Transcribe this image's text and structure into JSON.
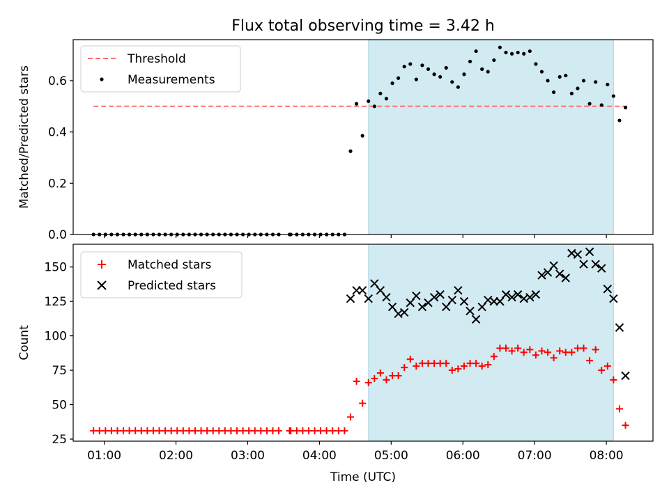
{
  "title": "Flux total observing time = 3.42 h",
  "colors": {
    "threshold": "#ff7070",
    "measurements": "#000000",
    "matched": "#ff0000",
    "predicted": "#000000",
    "span": "#add8e6"
  },
  "chart_data": [
    {
      "type": "scatter",
      "ylabel": "Matched/Predicted stars",
      "xlim": [
        "00:34",
        "08:39"
      ],
      "ylim": [
        0,
        0.76
      ],
      "yticks": [
        "0.0",
        "0.2",
        "0.4",
        "0.6"
      ],
      "ytick_values": [
        0,
        0.2,
        0.4,
        0.6
      ],
      "legend_position": "upper-left",
      "legend": [
        {
          "label": "Threshold",
          "marker": "dashed-line"
        },
        {
          "label": "Measurements",
          "marker": "dot"
        }
      ],
      "highlight_span": {
        "from": "04:41",
        "to": "08:06"
      },
      "threshold": {
        "value": 0.5,
        "from": "00:51",
        "to": "08:20"
      },
      "series": [
        {
          "name": "Measurements",
          "points": [
            [
              "00:51",
              0
            ],
            [
              "00:56",
              0
            ],
            [
              "01:01",
              0
            ],
            [
              "01:06",
              0
            ],
            [
              "01:11",
              0
            ],
            [
              "01:16",
              0
            ],
            [
              "01:21",
              0
            ],
            [
              "01:26",
              0
            ],
            [
              "01:31",
              0
            ],
            [
              "01:36",
              0
            ],
            [
              "01:41",
              0
            ],
            [
              "01:46",
              0
            ],
            [
              "01:51",
              0
            ],
            [
              "01:56",
              0
            ],
            [
              "02:01",
              0
            ],
            [
              "02:06",
              0
            ],
            [
              "02:11",
              0
            ],
            [
              "02:16",
              0
            ],
            [
              "02:21",
              0
            ],
            [
              "02:26",
              0
            ],
            [
              "02:31",
              0
            ],
            [
              "02:36",
              0
            ],
            [
              "02:41",
              0
            ],
            [
              "02:46",
              0
            ],
            [
              "02:51",
              0
            ],
            [
              "02:56",
              0
            ],
            [
              "03:01",
              0
            ],
            [
              "03:06",
              0
            ],
            [
              "03:11",
              0
            ],
            [
              "03:16",
              0
            ],
            [
              "03:21",
              0
            ],
            [
              "03:26",
              0
            ],
            [
              "03:35",
              0
            ],
            [
              "03:36",
              0
            ],
            [
              "03:41",
              0
            ],
            [
              "03:46",
              0
            ],
            [
              "03:51",
              0
            ],
            [
              "03:56",
              0
            ],
            [
              "04:01",
              0
            ],
            [
              "04:06",
              0
            ],
            [
              "04:11",
              0
            ],
            [
              "04:16",
              0
            ],
            [
              "04:21",
              0
            ],
            [
              "04:26",
              0.325
            ],
            [
              "04:31",
              0.51
            ],
            [
              "04:36",
              0.385
            ],
            [
              "04:41",
              0.52
            ],
            [
              "04:46",
              0.5
            ],
            [
              "04:51",
              0.55
            ],
            [
              "04:56",
              0.53
            ],
            [
              "05:01",
              0.59
            ],
            [
              "05:06",
              0.61
            ],
            [
              "05:11",
              0.655
            ],
            [
              "05:16",
              0.665
            ],
            [
              "05:21",
              0.605
            ],
            [
              "05:26",
              0.66
            ],
            [
              "05:31",
              0.645
            ],
            [
              "05:36",
              0.625
            ],
            [
              "05:41",
              0.615
            ],
            [
              "05:46",
              0.65
            ],
            [
              "05:51",
              0.595
            ],
            [
              "05:56",
              0.575
            ],
            [
              "06:01",
              0.625
            ],
            [
              "06:06",
              0.675
            ],
            [
              "06:11",
              0.715
            ],
            [
              "06:16",
              0.645
            ],
            [
              "06:21",
              0.635
            ],
            [
              "06:26",
              0.68
            ],
            [
              "06:31",
              0.73
            ],
            [
              "06:36",
              0.71
            ],
            [
              "06:41",
              0.705
            ],
            [
              "06:46",
              0.71
            ],
            [
              "06:51",
              0.705
            ],
            [
              "06:56",
              0.715
            ],
            [
              "07:01",
              0.665
            ],
            [
              "07:06",
              0.635
            ],
            [
              "07:11",
              0.6
            ],
            [
              "07:16",
              0.555
            ],
            [
              "07:21",
              0.615
            ],
            [
              "07:26",
              0.62
            ],
            [
              "07:31",
              0.55
            ],
            [
              "07:36",
              0.57
            ],
            [
              "07:41",
              0.6
            ],
            [
              "07:46",
              0.51
            ],
            [
              "07:51",
              0.595
            ],
            [
              "07:56",
              0.505
            ],
            [
              "08:01",
              0.585
            ],
            [
              "08:06",
              0.54
            ],
            [
              "08:11",
              0.445
            ],
            [
              "08:16",
              0.495
            ]
          ]
        }
      ]
    },
    {
      "type": "scatter",
      "xlabel": "Time (UTC)",
      "ylabel": "Count",
      "xlim": [
        "00:34",
        "08:39"
      ],
      "ylim": [
        23.5,
        166.5
      ],
      "xticks": [
        "01:00",
        "02:00",
        "03:00",
        "04:00",
        "05:00",
        "06:00",
        "07:00",
        "08:00"
      ],
      "yticks": [
        "25",
        "50",
        "75",
        "100",
        "125",
        "150"
      ],
      "ytick_values": [
        25,
        50,
        75,
        100,
        125,
        150
      ],
      "legend_position": "upper-left",
      "legend": [
        {
          "label": "Matched stars",
          "marker": "plus"
        },
        {
          "label": "Predicted stars",
          "marker": "x"
        }
      ],
      "highlight_span": {
        "from": "04:41",
        "to": "08:06"
      },
      "series": [
        {
          "name": "Matched stars",
          "points": [
            [
              "00:51",
              31
            ],
            [
              "00:56",
              31
            ],
            [
              "01:01",
              31
            ],
            [
              "01:06",
              31
            ],
            [
              "01:11",
              31
            ],
            [
              "01:16",
              31
            ],
            [
              "01:21",
              31
            ],
            [
              "01:26",
              31
            ],
            [
              "01:31",
              31
            ],
            [
              "01:36",
              31
            ],
            [
              "01:41",
              31
            ],
            [
              "01:46",
              31
            ],
            [
              "01:51",
              31
            ],
            [
              "01:56",
              31
            ],
            [
              "02:01",
              31
            ],
            [
              "02:06",
              31
            ],
            [
              "02:11",
              31
            ],
            [
              "02:16",
              31
            ],
            [
              "02:21",
              31
            ],
            [
              "02:26",
              31
            ],
            [
              "02:31",
              31
            ],
            [
              "02:36",
              31
            ],
            [
              "02:41",
              31
            ],
            [
              "02:46",
              31
            ],
            [
              "02:51",
              31
            ],
            [
              "02:56",
              31
            ],
            [
              "03:01",
              31
            ],
            [
              "03:06",
              31
            ],
            [
              "03:11",
              31
            ],
            [
              "03:16",
              31
            ],
            [
              "03:21",
              31
            ],
            [
              "03:26",
              31
            ],
            [
              "03:35",
              31
            ],
            [
              "03:36",
              31
            ],
            [
              "03:41",
              31
            ],
            [
              "03:46",
              31
            ],
            [
              "03:51",
              31
            ],
            [
              "03:56",
              31
            ],
            [
              "04:01",
              31
            ],
            [
              "04:06",
              31
            ],
            [
              "04:11",
              31
            ],
            [
              "04:16",
              31
            ],
            [
              "04:21",
              31
            ],
            [
              "04:26",
              41
            ],
            [
              "04:31",
              67
            ],
            [
              "04:36",
              51
            ],
            [
              "04:41",
              66
            ],
            [
              "04:46",
              69
            ],
            [
              "04:51",
              73
            ],
            [
              "04:56",
              68
            ],
            [
              "05:01",
              71
            ],
            [
              "05:06",
              71
            ],
            [
              "05:11",
              77
            ],
            [
              "05:16",
              83
            ],
            [
              "05:21",
              78
            ],
            [
              "05:26",
              80
            ],
            [
              "05:31",
              80
            ],
            [
              "05:36",
              80
            ],
            [
              "05:41",
              80
            ],
            [
              "05:46",
              80
            ],
            [
              "05:51",
              75
            ],
            [
              "05:56",
              76
            ],
            [
              "06:01",
              78
            ],
            [
              "06:06",
              80
            ],
            [
              "06:11",
              80
            ],
            [
              "06:16",
              78
            ],
            [
              "06:21",
              79
            ],
            [
              "06:26",
              85
            ],
            [
              "06:31",
              91
            ],
            [
              "06:36",
              91
            ],
            [
              "06:41",
              89
            ],
            [
              "06:46",
              91
            ],
            [
              "06:51",
              88
            ],
            [
              "06:56",
              90
            ],
            [
              "07:01",
              86
            ],
            [
              "07:06",
              89
            ],
            [
              "07:11",
              88
            ],
            [
              "07:16",
              84
            ],
            [
              "07:21",
              89
            ],
            [
              "07:26",
              88
            ],
            [
              "07:31",
              88
            ],
            [
              "07:36",
              91
            ],
            [
              "07:41",
              91
            ],
            [
              "07:46",
              82
            ],
            [
              "07:51",
              90
            ],
            [
              "07:56",
              75
            ],
            [
              "08:01",
              78
            ],
            [
              "08:06",
              68
            ],
            [
              "08:11",
              47
            ],
            [
              "08:16",
              35
            ]
          ]
        },
        {
          "name": "Predicted stars",
          "points": [
            [
              "04:26",
              127
            ],
            [
              "04:31",
              133
            ],
            [
              "04:36",
              133
            ],
            [
              "04:41",
              127
            ],
            [
              "04:46",
              138
            ],
            [
              "04:51",
              133
            ],
            [
              "04:56",
              128
            ],
            [
              "05:01",
              121
            ],
            [
              "05:06",
              116
            ],
            [
              "05:11",
              117
            ],
            [
              "05:16",
              124
            ],
            [
              "05:21",
              129
            ],
            [
              "05:26",
              121
            ],
            [
              "05:31",
              124
            ],
            [
              "05:36",
              128
            ],
            [
              "05:41",
              130
            ],
            [
              "05:46",
              121
            ],
            [
              "05:51",
              126
            ],
            [
              "05:56",
              133
            ],
            [
              "06:01",
              125
            ],
            [
              "06:06",
              118
            ],
            [
              "06:11",
              112
            ],
            [
              "06:16",
              121
            ],
            [
              "06:21",
              126
            ],
            [
              "06:26",
              125
            ],
            [
              "06:31",
              125
            ],
            [
              "06:36",
              130
            ],
            [
              "06:41",
              128
            ],
            [
              "06:46",
              130
            ],
            [
              "06:51",
              127
            ],
            [
              "06:56",
              128
            ],
            [
              "07:01",
              130
            ],
            [
              "07:06",
              144
            ],
            [
              "07:11",
              146
            ],
            [
              "07:16",
              151
            ],
            [
              "07:21",
              145
            ],
            [
              "07:26",
              142
            ],
            [
              "07:31",
              160
            ],
            [
              "07:36",
              159
            ],
            [
              "07:41",
              152
            ],
            [
              "07:46",
              161
            ],
            [
              "07:51",
              152
            ],
            [
              "07:56",
              149
            ],
            [
              "08:01",
              134
            ],
            [
              "08:06",
              127
            ],
            [
              "08:11",
              106
            ],
            [
              "08:16",
              71
            ]
          ]
        }
      ]
    }
  ]
}
